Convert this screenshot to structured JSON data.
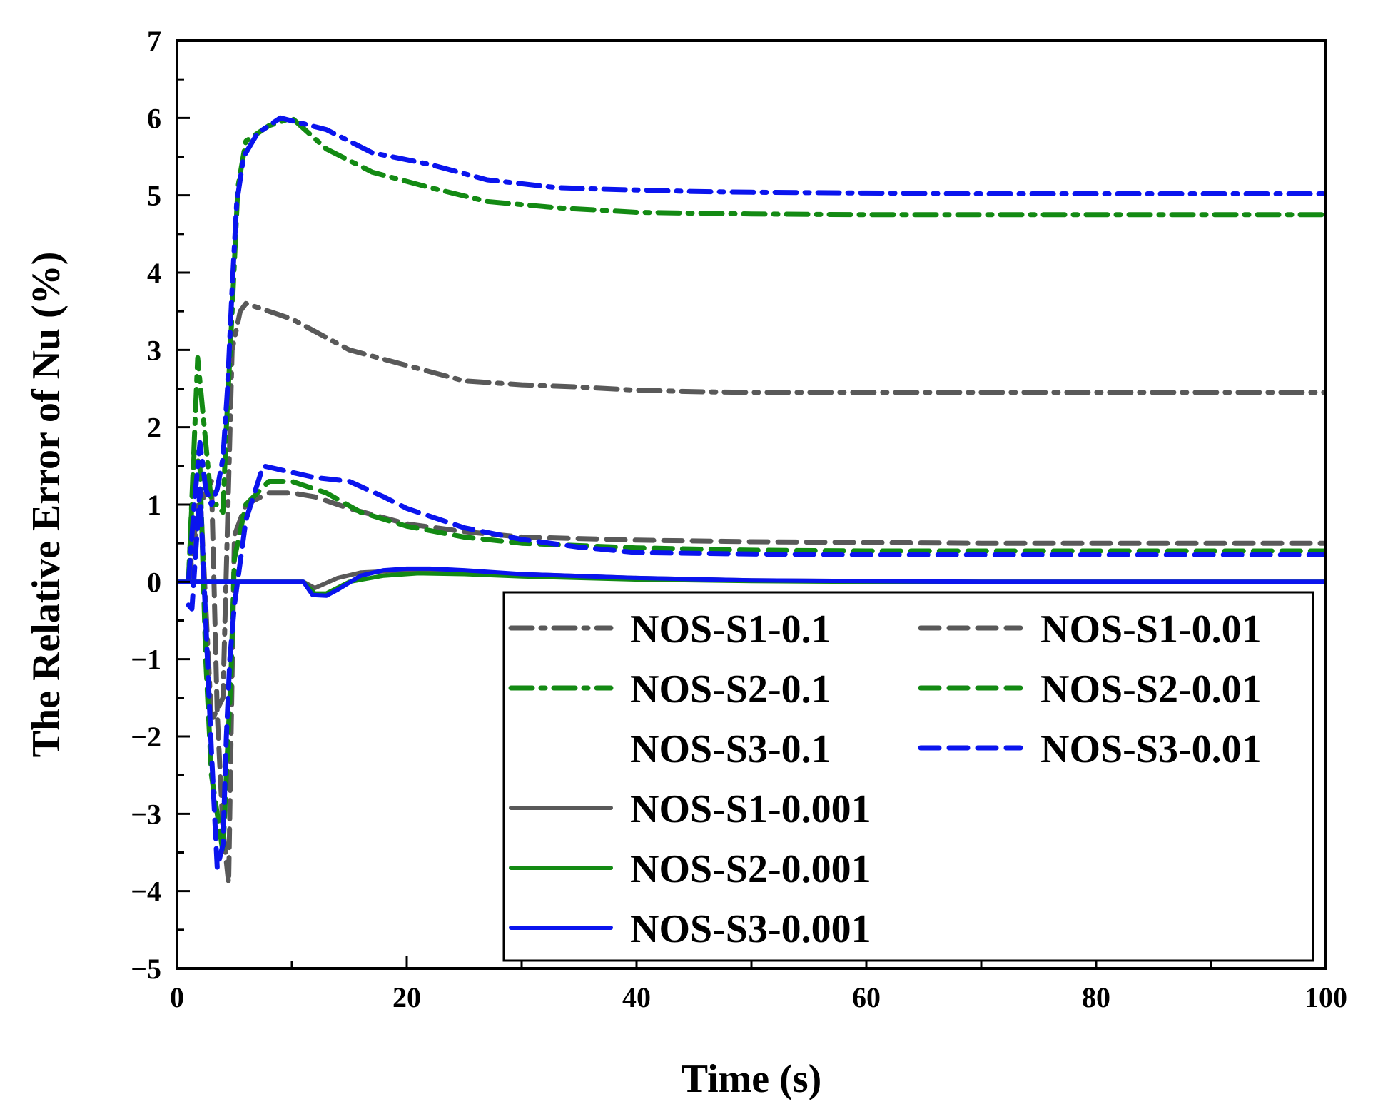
{
  "chart_data": {
    "type": "line",
    "title": "",
    "xlabel": "Time (s)",
    "ylabel": "The Relative Error of  Nu (%)",
    "xlim": [
      0,
      100
    ],
    "ylim": [
      -5,
      7
    ],
    "xticks": [
      0,
      20,
      40,
      60,
      80,
      100
    ],
    "yticks": [
      7,
      6,
      5,
      4,
      3,
      2,
      1,
      0,
      -1,
      -2,
      -3,
      -4,
      -5
    ],
    "ytick_labels": [
      "7",
      "6",
      "5",
      "4",
      "3",
      "2",
      "1",
      "0",
      "−1",
      "−2",
      "−3",
      "−4",
      "−5"
    ],
    "grid": false,
    "legend_position": "bottom-right",
    "series": [
      {
        "name": "NOS-S1-0.1",
        "color": "#595959",
        "style": "dashdot",
        "x": [
          1,
          2,
          3,
          4,
          4.8,
          5.5,
          6,
          8,
          10,
          15,
          20,
          25,
          30,
          35,
          40,
          45,
          50,
          60,
          70,
          80,
          90,
          100
        ],
        "y": [
          0,
          1.2,
          -1.8,
          -1.5,
          3.0,
          3.5,
          3.6,
          3.5,
          3.4,
          3.0,
          2.8,
          2.6,
          2.55,
          2.52,
          2.48,
          2.46,
          2.45,
          2.45,
          2.45,
          2.45,
          2.45,
          2.45
        ]
      },
      {
        "name": "NOS-S1-0.01",
        "color": "#595959",
        "style": "dashed",
        "x": [
          1,
          2,
          3,
          3.5,
          4,
          4.5,
          5,
          6,
          8,
          10,
          12,
          15,
          20,
          25,
          30,
          40,
          50,
          60,
          70,
          80,
          100
        ],
        "y": [
          0,
          1.0,
          1.3,
          -1.7,
          -3.2,
          -3.9,
          0.6,
          1.0,
          1.15,
          1.15,
          1.1,
          0.95,
          0.75,
          0.65,
          0.58,
          0.54,
          0.52,
          0.51,
          0.5,
          0.5,
          0.5
        ]
      },
      {
        "name": "NOS-S2-0.1",
        "color": "#138a13",
        "style": "dashdot",
        "x": [
          1,
          1.8,
          2.5,
          3,
          3.5,
          4,
          4.3,
          4.8,
          5.3,
          6,
          8,
          10,
          13,
          17,
          22,
          27,
          33,
          40,
          50,
          60,
          70,
          80,
          90,
          100
        ],
        "y": [
          0,
          2.9,
          1.8,
          1.0,
          1.0,
          0.9,
          2.0,
          3.5,
          5.1,
          5.7,
          5.9,
          6.0,
          5.6,
          5.3,
          5.1,
          4.92,
          4.84,
          4.78,
          4.76,
          4.75,
          4.75,
          4.75,
          4.75,
          4.75
        ]
      },
      {
        "name": "NOS-S2-0.01",
        "color": "#138a13",
        "style": "dashed",
        "x": [
          1,
          1.5,
          2,
          2.5,
          3,
          3.5,
          4,
          4.3,
          4.7,
          5,
          6,
          8,
          10,
          13,
          16,
          20,
          25,
          30,
          40,
          50,
          60,
          70,
          80,
          100
        ],
        "y": [
          0,
          1.7,
          1.5,
          -1.0,
          -2.5,
          -3.0,
          -3.5,
          -2.5,
          -1.2,
          0.3,
          1.0,
          1.3,
          1.3,
          1.15,
          0.9,
          0.72,
          0.58,
          0.5,
          0.44,
          0.41,
          0.4,
          0.4,
          0.4,
          0.4
        ]
      },
      {
        "name": "NOS-S3-0.1",
        "color": "#0a14ee",
        "style": "dashdot",
        "x": [
          1,
          1.5,
          2,
          2.5,
          3,
          3.5,
          4,
          4.4,
          4.8,
          5.2,
          5.8,
          7,
          9,
          13,
          17,
          22,
          27,
          33,
          37,
          45,
          50,
          60,
          70,
          80,
          90,
          100
        ],
        "y": [
          0,
          1.0,
          1.8,
          1.2,
          1.0,
          1.2,
          1.6,
          2.5,
          3.8,
          4.9,
          5.5,
          5.8,
          6.0,
          5.85,
          5.55,
          5.4,
          5.2,
          5.1,
          5.08,
          5.05,
          5.04,
          5.03,
          5.02,
          5.02,
          5.02,
          5.02
        ]
      },
      {
        "name": "NOS-S3-0.01",
        "color": "#0a14ee",
        "style": "dashed",
        "x": [
          1,
          1.3,
          2,
          2.5,
          3,
          3.5,
          4,
          4.3,
          4.6,
          5,
          6,
          7.5,
          9,
          12,
          15,
          18,
          20,
          25,
          30,
          35,
          40,
          50,
          60,
          70,
          80,
          100
        ],
        "y": [
          -0.3,
          -0.35,
          1.2,
          -0.5,
          -2.2,
          -3.7,
          -3.4,
          -2.0,
          -1.0,
          -0.3,
          0.8,
          1.5,
          1.45,
          1.35,
          1.3,
          1.1,
          0.95,
          0.7,
          0.55,
          0.45,
          0.38,
          0.36,
          0.35,
          0.35,
          0.35,
          0.35
        ]
      },
      {
        "name": "NOS-S1-0.001",
        "color": "#595959",
        "style": "solid",
        "x": [
          0,
          10,
          11,
          12,
          14,
          16,
          20,
          22,
          25,
          30,
          40,
          50,
          60,
          70,
          80,
          90,
          100
        ],
        "y": [
          0,
          0,
          0,
          -0.08,
          0.05,
          0.12,
          0.15,
          0.15,
          0.13,
          0.1,
          0.05,
          0.02,
          0.01,
          0,
          0,
          0,
          0
        ]
      },
      {
        "name": "NOS-S2-0.001",
        "color": "#138a13",
        "style": "solid",
        "x": [
          0,
          10,
          11,
          12,
          13,
          15,
          18,
          21,
          25,
          30,
          40,
          50,
          60,
          70,
          80,
          90,
          100
        ],
        "y": [
          0,
          0,
          0,
          -0.15,
          -0.15,
          0.0,
          0.08,
          0.11,
          0.1,
          0.07,
          0.03,
          0.01,
          0,
          0,
          0,
          0,
          0
        ]
      },
      {
        "name": "NOS-S3-0.001",
        "color": "#0a14ee",
        "style": "solid",
        "x": [
          0,
          11,
          11.8,
          13,
          14,
          16,
          18,
          20,
          22,
          25,
          30,
          40,
          50,
          60,
          70,
          80,
          90,
          100
        ],
        "y": [
          0,
          0,
          -0.17,
          -0.18,
          -0.1,
          0.08,
          0.15,
          0.17,
          0.17,
          0.15,
          0.1,
          0.05,
          0.02,
          0.01,
          0,
          0,
          0,
          0
        ]
      }
    ],
    "legend_order": [
      "NOS-S1-0.1",
      "NOS-S1-0.01",
      "NOS-S2-0.1",
      "NOS-S2-0.01",
      "NOS-S3-0.1",
      "NOS-S3-0.01",
      "NOS-S1-0.001",
      "NOS-S2-0.001",
      "NOS-S3-0.001"
    ]
  }
}
